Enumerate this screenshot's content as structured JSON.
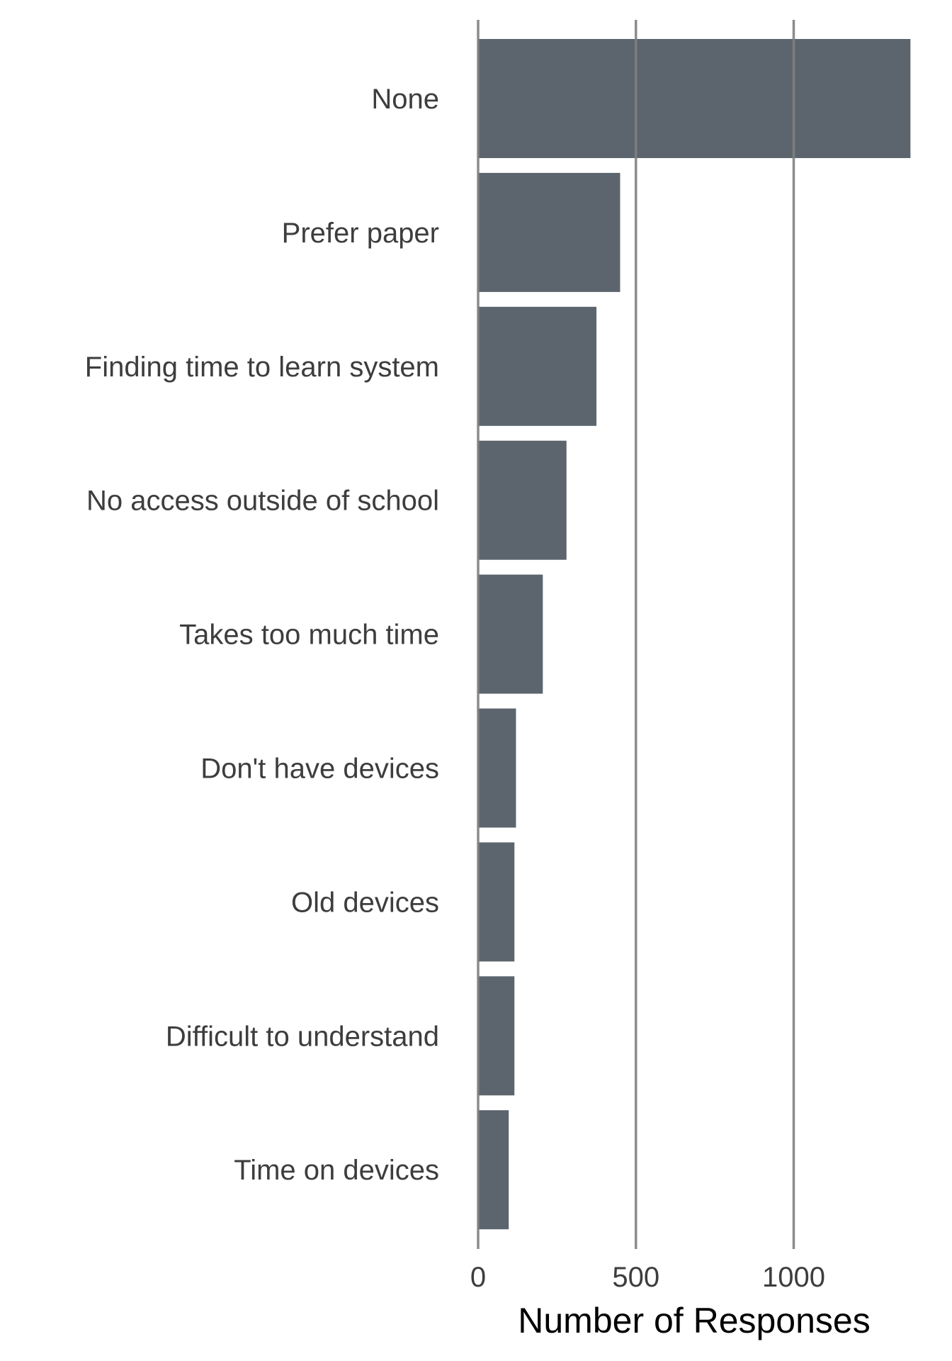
{
  "chart_data": {
    "type": "bar",
    "orientation": "horizontal",
    "categories": [
      "None",
      "Prefer paper",
      "Finding time to learn system",
      "No access outside of school",
      "Takes too much time",
      "Don't have devices",
      "Old devices",
      "Difficult to understand",
      "Time on devices"
    ],
    "values": [
      1370,
      450,
      375,
      280,
      205,
      120,
      115,
      115,
      97
    ],
    "xlabel": "Number of Responses",
    "ylabel": "",
    "title": "",
    "xlim": [
      0,
      1380
    ],
    "xticks": [
      0,
      500,
      1000
    ],
    "xtick_labels": [
      "0",
      "500",
      "1000"
    ],
    "grid": "vertical major lines",
    "legend": "none",
    "colors": {
      "bar": "#5c656e",
      "grid": "#808080",
      "text": "#3d3d3d",
      "axis_title": "#000000"
    }
  }
}
